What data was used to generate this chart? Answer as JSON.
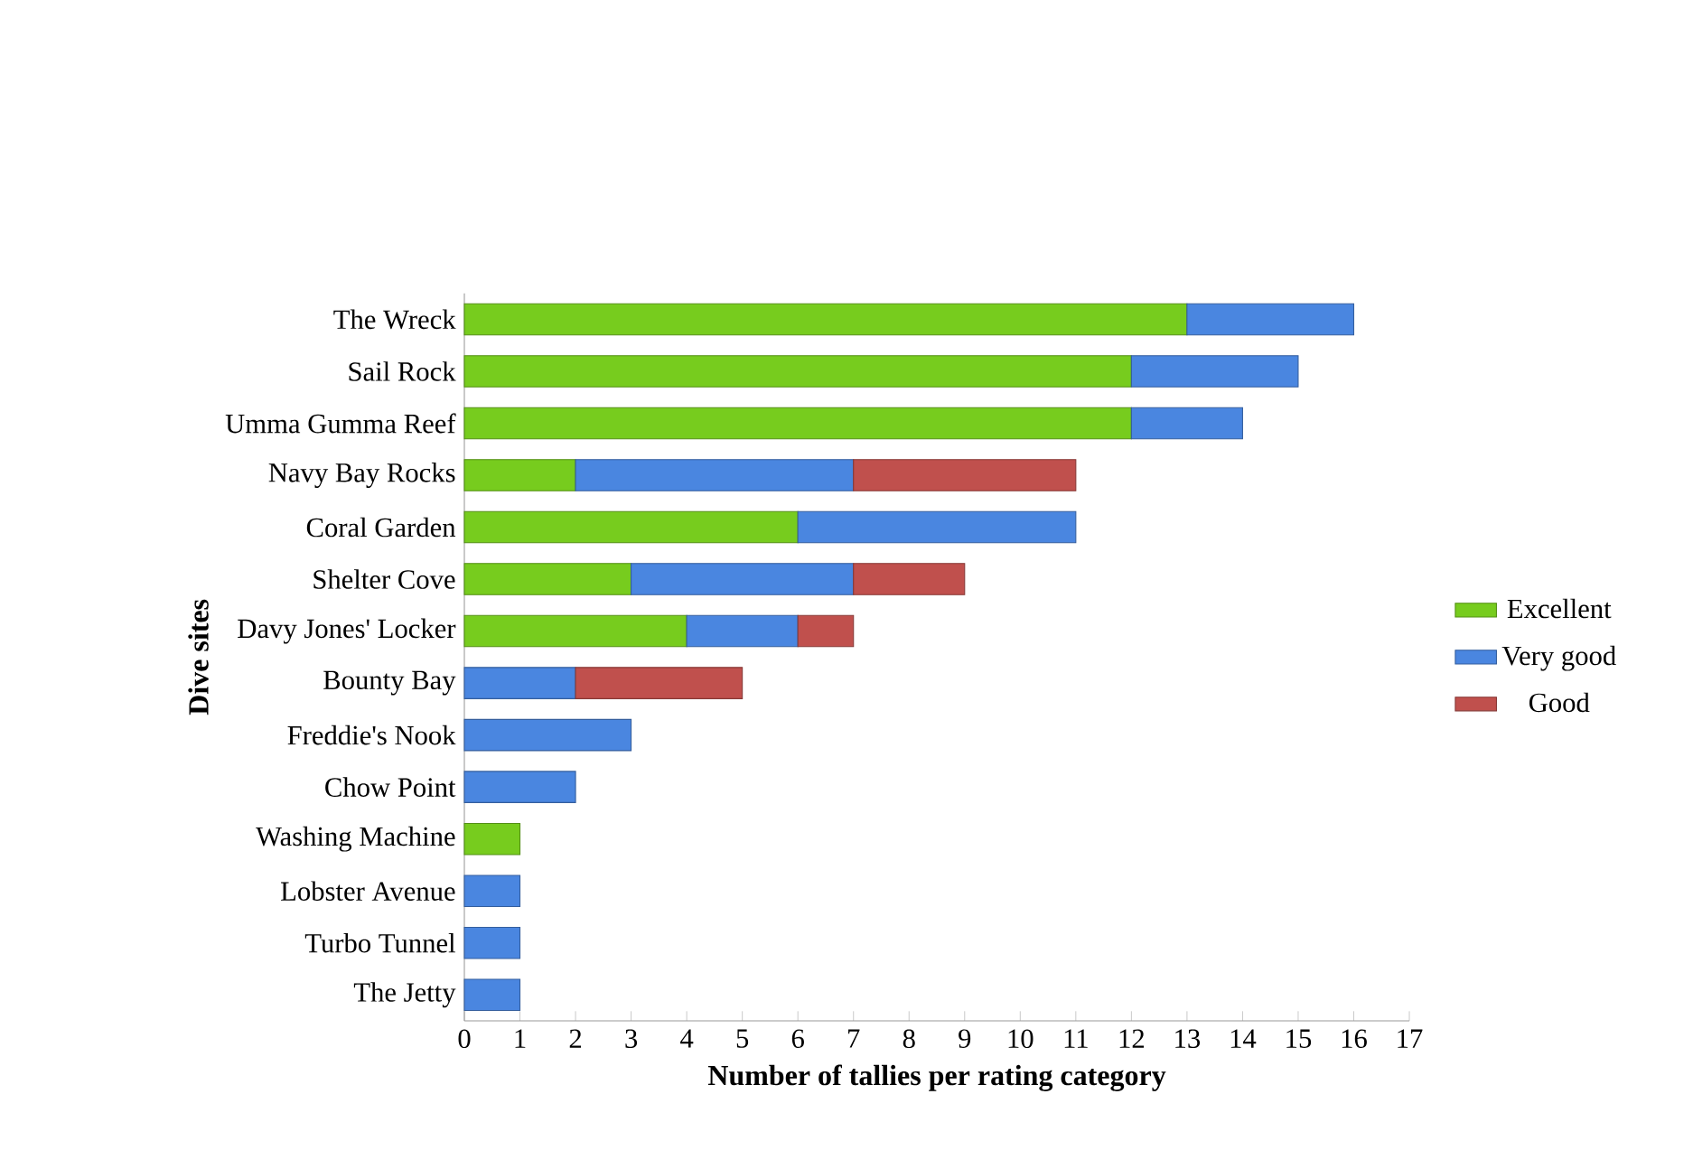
{
  "chart_data": {
    "type": "bar",
    "orientation": "horizontal",
    "stacked": true,
    "xlabel": "Number of tallies per rating category",
    "ylabel": "Dive sites",
    "categories": [
      "The Wreck",
      "Sail Rock",
      "Umma Gumma Reef",
      "Navy Bay Rocks",
      "Coral Garden",
      "Shelter Cove",
      "Davy Jones' Locker",
      "Bounty Bay",
      "Freddie's Nook",
      "Chow Point",
      "Washing Machine",
      "Lobster Avenue",
      "Turbo Tunnel",
      "The Jetty"
    ],
    "series": [
      {
        "name": "Excellent",
        "color": "#77cc1e",
        "values": [
          13,
          12,
          12,
          2,
          6,
          3,
          4,
          null,
          null,
          null,
          1,
          null,
          null,
          null
        ]
      },
      {
        "name": "Very good",
        "color": "#4a86e0",
        "values": [
          3,
          3,
          2,
          5,
          5,
          4,
          2,
          2,
          3,
          2,
          null,
          1,
          1,
          1
        ]
      },
      {
        "name": "Good",
        "color": "#c0504d",
        "values": [
          null,
          null,
          null,
          4,
          null,
          2,
          1,
          3,
          null,
          null,
          null,
          null,
          null,
          null
        ]
      }
    ],
    "xlim": [
      0,
      17
    ],
    "xticks": [
      0,
      1,
      2,
      3,
      4,
      5,
      6,
      7,
      8,
      9,
      10,
      11,
      12,
      13,
      14,
      15,
      16,
      17
    ],
    "grid": false,
    "legend": "right"
  }
}
